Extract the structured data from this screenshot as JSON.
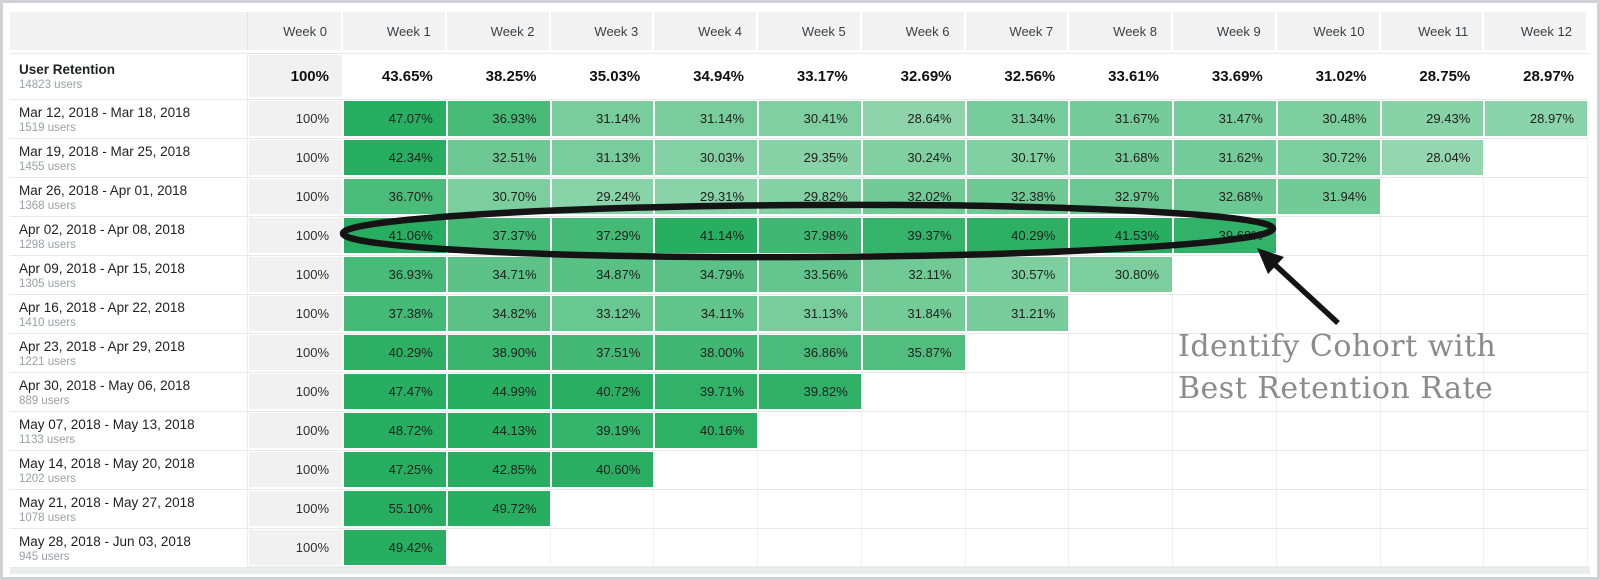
{
  "chart_data": {
    "type": "heatmap",
    "title": "User Retention",
    "columns": [
      "Week 0",
      "Week 1",
      "Week 2",
      "Week 3",
      "Week 4",
      "Week 5",
      "Week 6",
      "Week 7",
      "Week 8",
      "Week 9",
      "Week 10",
      "Week 11",
      "Week 12"
    ],
    "summary": {
      "label": "User Retention",
      "users": "14823 users",
      "values": [
        100,
        43.65,
        38.25,
        35.03,
        34.94,
        33.17,
        32.69,
        32.56,
        33.61,
        33.69,
        31.02,
        28.75,
        28.97
      ]
    },
    "rows": [
      {
        "label": "Mar 12, 2018 - Mar 18, 2018",
        "users": "1519 users",
        "values": [
          100,
          47.07,
          36.93,
          31.14,
          31.14,
          30.41,
          28.64,
          31.34,
          31.67,
          31.47,
          30.48,
          29.43,
          28.97
        ]
      },
      {
        "label": "Mar 19, 2018 - Mar 25, 2018",
        "users": "1455 users",
        "values": [
          100,
          42.34,
          32.51,
          31.13,
          30.03,
          29.35,
          30.24,
          30.17,
          31.68,
          31.62,
          30.72,
          28.04
        ]
      },
      {
        "label": "Mar 26, 2018 - Apr 01, 2018",
        "users": "1368 users",
        "values": [
          100,
          36.7,
          30.7,
          29.24,
          29.31,
          29.82,
          32.02,
          32.38,
          32.97,
          32.68,
          31.94
        ]
      },
      {
        "label": "Apr 02, 2018 - Apr 08, 2018",
        "users": "1298 users",
        "values": [
          100,
          41.06,
          37.37,
          37.29,
          41.14,
          37.98,
          39.37,
          40.29,
          41.53,
          39.68
        ]
      },
      {
        "label": "Apr 09, 2018 - Apr 15, 2018",
        "users": "1305 users",
        "values": [
          100,
          36.93,
          34.71,
          34.87,
          34.79,
          33.56,
          32.11,
          30.57,
          30.8
        ]
      },
      {
        "label": "Apr 16, 2018 - Apr 22, 2018",
        "users": "1410 users",
        "values": [
          100,
          37.38,
          34.82,
          33.12,
          34.11,
          31.13,
          31.84,
          31.21
        ]
      },
      {
        "label": "Apr 23, 2018 - Apr 29, 2018",
        "users": "1221 users",
        "values": [
          100,
          40.29,
          38.9,
          37.51,
          38.0,
          36.86,
          35.87
        ]
      },
      {
        "label": "Apr 30, 2018 - May 06, 2018",
        "users": "889 users",
        "values": [
          100,
          47.47,
          44.99,
          40.72,
          39.71,
          39.82
        ]
      },
      {
        "label": "May 07, 2018 - May 13, 2018",
        "users": "1133 users",
        "values": [
          100,
          48.72,
          44.13,
          39.19,
          40.16
        ]
      },
      {
        "label": "May 14, 2018 - May 20, 2018",
        "users": "1202 users",
        "values": [
          100,
          47.25,
          42.85,
          40.6
        ]
      },
      {
        "label": "May 21, 2018 - May 27, 2018",
        "users": "1078 users",
        "values": [
          100,
          55.1,
          49.72
        ]
      },
      {
        "label": "May 28, 2018 - Jun 03, 2018",
        "users": "945 users",
        "values": [
          100,
          49.42
        ]
      }
    ],
    "value_format": "percent_2dp",
    "color_scale": {
      "base": "#27ae60",
      "alpha_min": 0.48,
      "alpha_max": 1.0,
      "domain": [
        27.5,
        41
      ]
    },
    "legend_position": "none",
    "highlighted_row": "Apr 02, 2018 - Apr 08, 2018"
  },
  "annotation": {
    "line1": "Identify Cohort with",
    "line2": "Best Retention Rate",
    "text_color": "#8b8b8b",
    "shape_color": "#141414"
  },
  "colors": {
    "header_bg": "#f2f2f3",
    "week0_bg": "#f1f1f2",
    "row_border": "#e8e8e8",
    "frame": "#cfd3d7"
  }
}
